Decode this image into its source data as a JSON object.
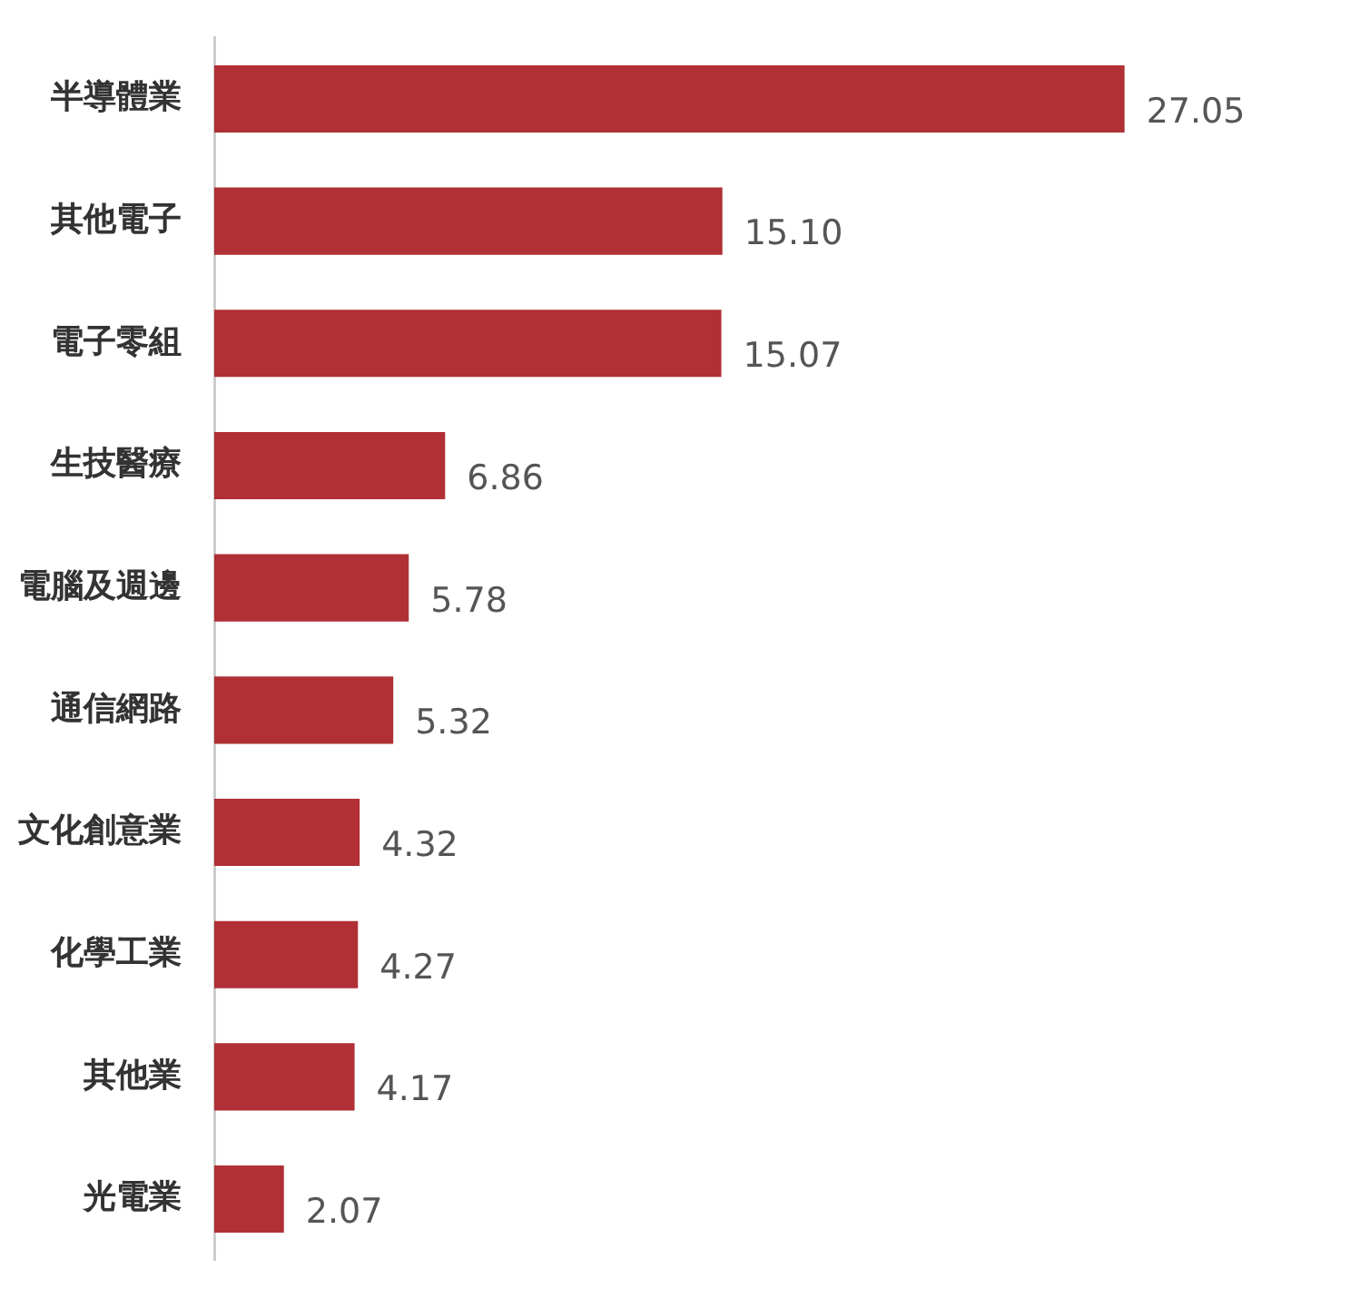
{
  "chart_data": {
    "type": "bar",
    "orientation": "horizontal",
    "categories": [
      "半導體業",
      "其他電子",
      "電子零組",
      "生技醫療",
      "電腦及週邊",
      "通信網路",
      "文化創意業",
      "化學工業",
      "其他業",
      "光電業"
    ],
    "values": [
      27.05,
      15.1,
      15.07,
      6.86,
      5.78,
      5.32,
      4.32,
      4.27,
      4.17,
      2.07
    ],
    "value_labels": [
      "27.05",
      "15.10",
      "15.07",
      "6.86",
      "5.78",
      "5.32",
      "4.32",
      "4.27",
      "4.17",
      "2.07"
    ],
    "color": "#b03035"
  }
}
